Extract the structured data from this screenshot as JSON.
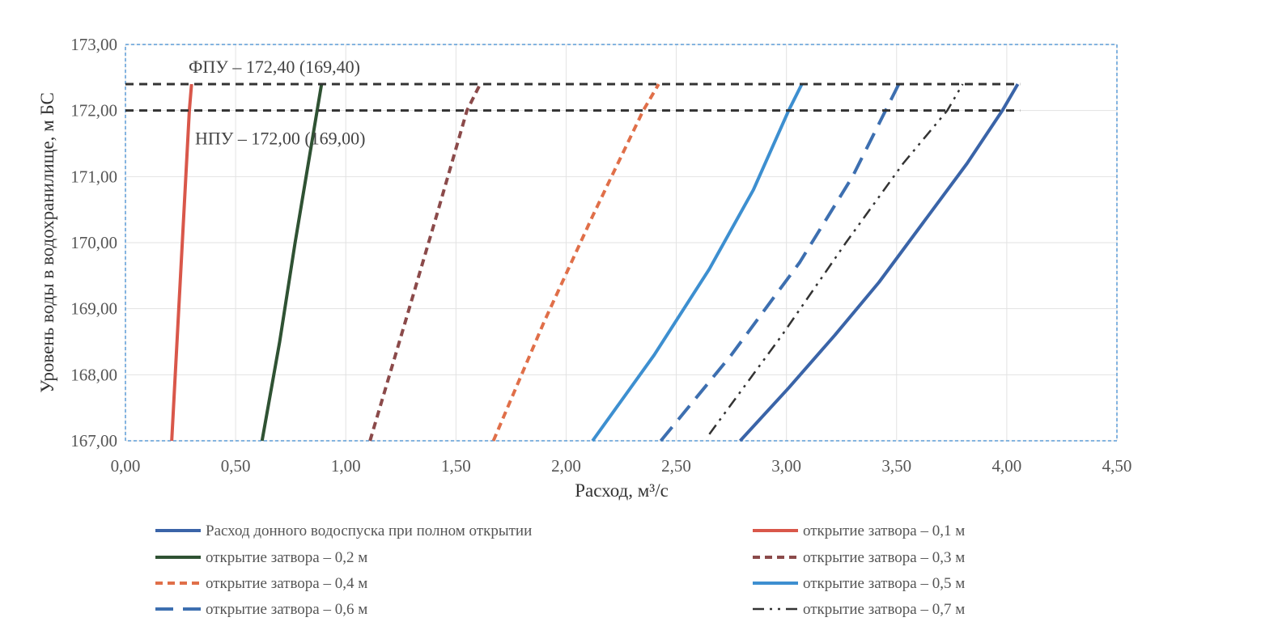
{
  "chart_data": {
    "type": "line",
    "xlabel": "Расход, м³/с",
    "ylabel": "Уровень воды в водохранилище, м БС",
    "xlim": [
      0,
      4.5
    ],
    "ylim": [
      167,
      173
    ],
    "x_ticks": [
      "0,00",
      "0,50",
      "1,00",
      "1,50",
      "2,00",
      "2,50",
      "3,00",
      "3,50",
      "4,00",
      "4,50"
    ],
    "y_ticks": [
      "167,00",
      "168,00",
      "169,00",
      "170,00",
      "171,00",
      "172,00",
      "173,00"
    ],
    "grid": true,
    "legend_position": "bottom",
    "reference_lines": [
      {
        "label": "ФПУ – 172,40 (169,40)",
        "y": 172.4
      },
      {
        "label": "НПУ – 172,00 (169,00)",
        "y": 172.0
      }
    ],
    "series": [
      {
        "name": "Расход донного водоспуска при полном открытии",
        "color": "#3a64a8",
        "style": "solid",
        "points": [
          [
            2.79,
            167.0
          ],
          [
            3.01,
            167.8
          ],
          [
            3.22,
            168.6
          ],
          [
            3.42,
            169.4
          ],
          [
            3.62,
            170.3
          ],
          [
            3.82,
            171.2
          ],
          [
            3.98,
            172.0
          ],
          [
            4.05,
            172.4
          ]
        ]
      },
      {
        "name": "открытие затвора – 0,1 м",
        "color": "#d9574a",
        "style": "solid",
        "points": [
          [
            0.21,
            167.0
          ],
          [
            0.25,
            169.5
          ],
          [
            0.29,
            172.0
          ],
          [
            0.3,
            172.4
          ]
        ]
      },
      {
        "name": "открытие затвора – 0,2 м",
        "color": "#2f5233",
        "style": "solid",
        "points": [
          [
            0.62,
            167.0
          ],
          [
            0.7,
            168.5
          ],
          [
            0.77,
            170.0
          ],
          [
            0.83,
            171.2
          ],
          [
            0.87,
            172.0
          ],
          [
            0.89,
            172.4
          ]
        ]
      },
      {
        "name": "открытие затвора – 0,3 м",
        "color": "#8b4a4a",
        "style": "dashed",
        "points": [
          [
            1.11,
            167.0
          ],
          [
            1.27,
            168.8
          ],
          [
            1.42,
            170.5
          ],
          [
            1.55,
            172.0
          ],
          [
            1.61,
            172.4
          ]
        ]
      },
      {
        "name": "открытие затвора – 0,4 м",
        "color": "#e06f49",
        "style": "dashed",
        "points": [
          [
            1.67,
            167.0
          ],
          [
            1.9,
            168.8
          ],
          [
            2.12,
            170.4
          ],
          [
            2.35,
            172.0
          ],
          [
            2.42,
            172.4
          ]
        ]
      },
      {
        "name": "открытие затвора – 0,5 м",
        "color": "#3d8fd0",
        "style": "solid",
        "points": [
          [
            2.12,
            167.0
          ],
          [
            2.4,
            168.3
          ],
          [
            2.65,
            169.6
          ],
          [
            2.85,
            170.8
          ],
          [
            3.01,
            172.0
          ],
          [
            3.07,
            172.4
          ]
        ]
      },
      {
        "name": "открытие затвора – 0,6 м",
        "color": "#3d6fb0",
        "style": "longdash",
        "points": [
          [
            2.43,
            167.0
          ],
          [
            2.75,
            168.3
          ],
          [
            3.06,
            169.7
          ],
          [
            3.3,
            171.0
          ],
          [
            3.45,
            172.0
          ],
          [
            3.51,
            172.4
          ]
        ]
      },
      {
        "name": "открытие затвора  – 0,7 м",
        "color": "#333333",
        "style": "dashdotdot",
        "points": [
          [
            2.65,
            167.1
          ],
          [
            2.98,
            168.6
          ],
          [
            3.27,
            170.0
          ],
          [
            3.53,
            171.2
          ],
          [
            3.73,
            172.0
          ],
          [
            3.8,
            172.4
          ]
        ]
      }
    ]
  }
}
